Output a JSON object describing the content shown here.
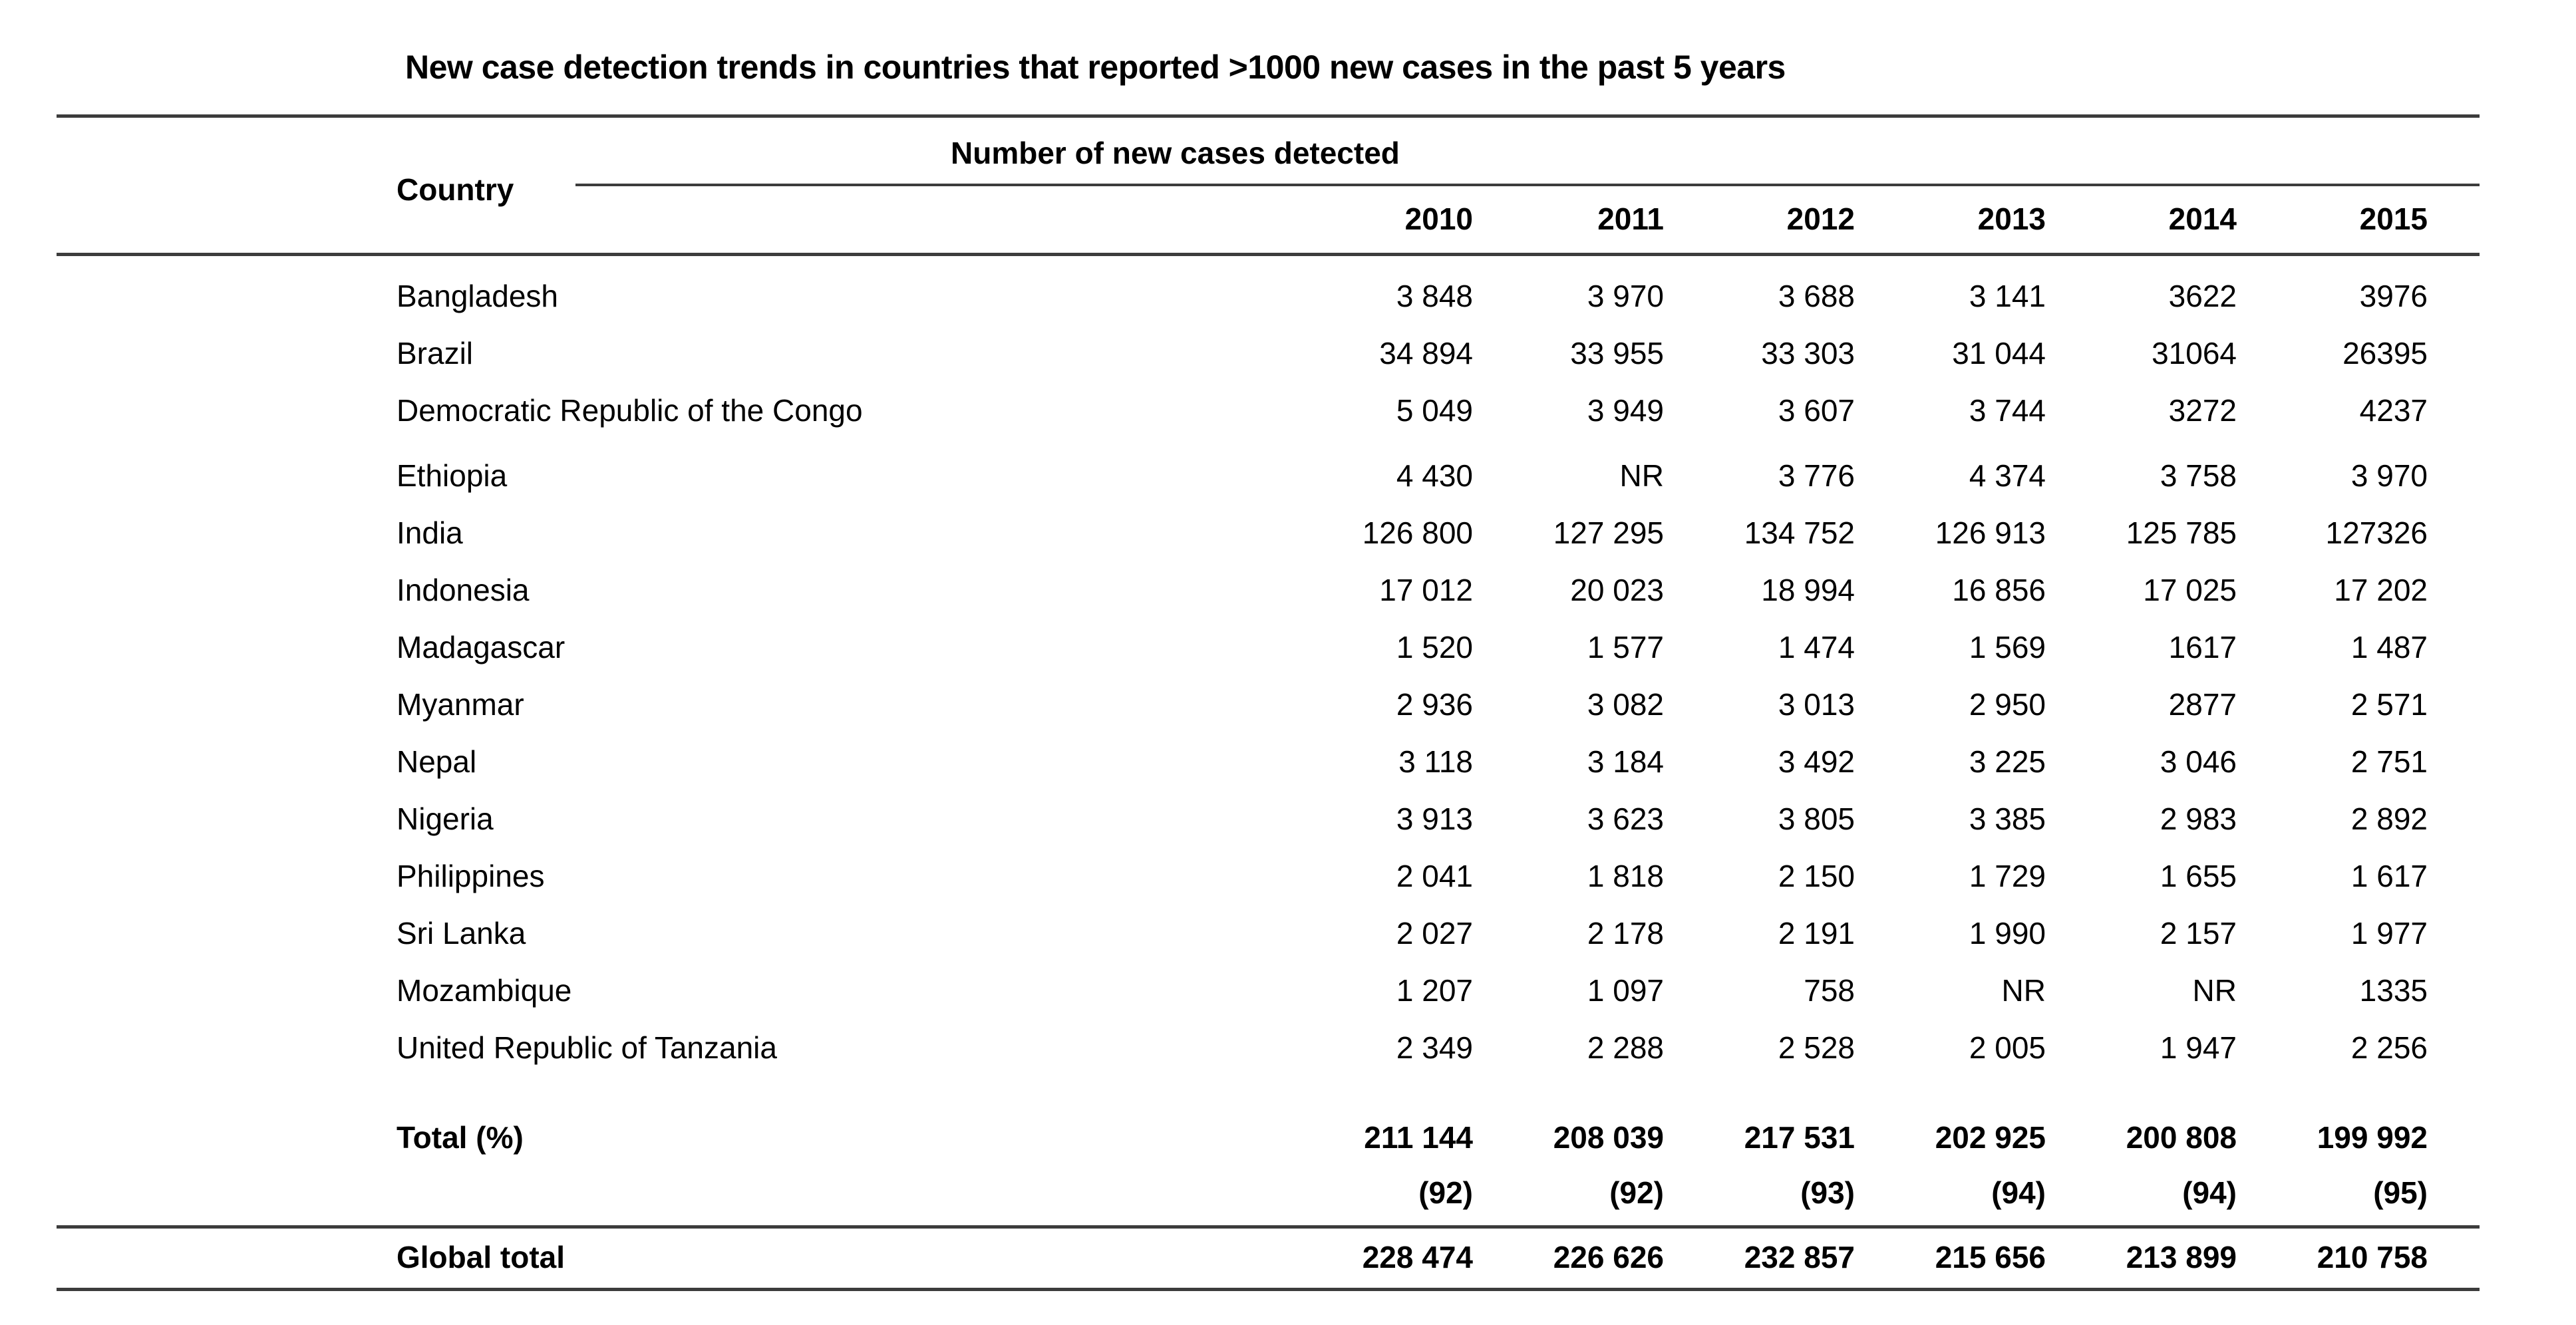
{
  "title": "New case detection trends in countries that reported >1000 new cases in the past 5 years",
  "table": {
    "country_header": "Country",
    "span_header": "Number of new cases detected",
    "years": [
      "2010",
      "2011",
      "2012",
      "2013",
      "2014",
      "2015"
    ],
    "rows": [
      {
        "country": "Bangladesh",
        "values": [
          "3 848",
          "3 970",
          "3 688",
          "3 141",
          "3622",
          "3976"
        ]
      },
      {
        "country": "Brazil",
        "values": [
          "34 894",
          "33 955",
          "33 303",
          "31 044",
          "31064",
          "26395"
        ]
      },
      {
        "country": "Democratic Republic of the Congo",
        "values": [
          "5 049",
          "3 949",
          "3 607",
          "3 744",
          "3272",
          "4237"
        ]
      },
      {
        "country": "Ethiopia",
        "values": [
          "4 430",
          "NR",
          "3 776",
          "4 374",
          "3 758",
          "3 970"
        ]
      },
      {
        "country": "India",
        "values": [
          "126 800",
          "127 295",
          "134 752",
          "126 913",
          "125 785",
          "127326"
        ]
      },
      {
        "country": "Indonesia",
        "values": [
          "17 012",
          "20 023",
          "18 994",
          "16 856",
          "17 025",
          "17 202"
        ]
      },
      {
        "country": "Madagascar",
        "values": [
          "1 520",
          "1 577",
          "1 474",
          "1 569",
          "1617",
          "1 487"
        ]
      },
      {
        "country": "Myanmar",
        "values": [
          "2 936",
          "3 082",
          "3 013",
          "2 950",
          "2877",
          "2 571"
        ]
      },
      {
        "country": "Nepal",
        "values": [
          "3 118",
          "3 184",
          "3 492",
          "3 225",
          "3 046",
          "2 751"
        ]
      },
      {
        "country": "Nigeria",
        "values": [
          "3 913",
          "3 623",
          "3 805",
          "3 385",
          "2 983",
          "2 892"
        ]
      },
      {
        "country": "Philippines",
        "values": [
          "2 041",
          "1 818",
          "2 150",
          "1 729",
          "1 655",
          "1 617"
        ]
      },
      {
        "country": "Sri Lanka",
        "values": [
          "2 027",
          "2 178",
          "2 191",
          "1 990",
          "2 157",
          "1 977"
        ]
      },
      {
        "country": "Mozambique",
        "values": [
          "1 207",
          "1 097",
          "758",
          "NR",
          "NR",
          "1335"
        ]
      },
      {
        "country": "United Republic of Tanzania",
        "values": [
          "2 349",
          "2 288",
          "2 528",
          "2 005",
          "1 947",
          "2 256"
        ]
      }
    ],
    "total_row": {
      "label": "Total (%)",
      "values": [
        "211 144",
        "208 039",
        "217 531",
        "202 925",
        "200 808",
        "199 992"
      ]
    },
    "percent_row": {
      "values": [
        "(92)",
        "(92)",
        "(93)",
        "(94)",
        "(94)",
        "(95)"
      ]
    },
    "global_row": {
      "label": "Global total",
      "values": [
        "228 474",
        "226 626",
        "232 857",
        "215 656",
        "213 899",
        "210 758"
      ]
    }
  },
  "chart_data": {
    "type": "table",
    "title": "New case detection trends in countries that reported >1000 new cases in the past 5 years",
    "columns": [
      "Country",
      "2010",
      "2011",
      "2012",
      "2013",
      "2014",
      "2015"
    ],
    "rows": [
      [
        "Bangladesh",
        3848,
        3970,
        3688,
        3141,
        3622,
        3976
      ],
      [
        "Brazil",
        34894,
        33955,
        33303,
        31044,
        31064,
        26395
      ],
      [
        "Democratic Republic of the Congo",
        5049,
        3949,
        3607,
        3744,
        3272,
        4237
      ],
      [
        "Ethiopia",
        4430,
        "NR",
        3776,
        4374,
        3758,
        3970
      ],
      [
        "India",
        126800,
        127295,
        134752,
        126913,
        125785,
        127326
      ],
      [
        "Indonesia",
        17012,
        20023,
        18994,
        16856,
        17025,
        17202
      ],
      [
        "Madagascar",
        1520,
        1577,
        1474,
        1569,
        1617,
        1487
      ],
      [
        "Myanmar",
        2936,
        3082,
        3013,
        2950,
        2877,
        2571
      ],
      [
        "Nepal",
        3118,
        3184,
        3492,
        3225,
        3046,
        2751
      ],
      [
        "Nigeria",
        3913,
        3623,
        3805,
        3385,
        2983,
        2892
      ],
      [
        "Philippines",
        2041,
        1818,
        2150,
        1729,
        1655,
        1617
      ],
      [
        "Sri Lanka",
        2027,
        2178,
        2191,
        1990,
        2157,
        1977
      ],
      [
        "Mozambique",
        1207,
        1097,
        758,
        "NR",
        "NR",
        1335
      ],
      [
        "United Republic of Tanzania",
        2349,
        2288,
        2528,
        2005,
        1947,
        2256
      ],
      [
        "Total (%)",
        "211 144 (92)",
        "208 039 (92)",
        "217 531 (93)",
        "202 925 (94)",
        "200 808 (94)",
        "199 992 (95)"
      ],
      [
        "Global total",
        228474,
        226626,
        232857,
        215656,
        213899,
        210758
      ]
    ]
  }
}
